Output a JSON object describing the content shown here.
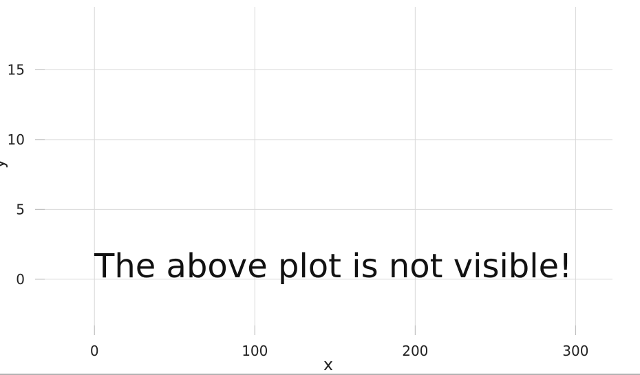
{
  "chart_data": {
    "type": "scatter",
    "title": "",
    "xlabel": "x",
    "ylabel": "y",
    "xlim": [
      -37,
      323
    ],
    "ylim": [
      -4,
      19.5
    ],
    "x_ticks": [
      0,
      100,
      200,
      300
    ],
    "y_ticks": [
      0,
      5,
      10,
      15
    ],
    "x_tick_labels": [
      "0",
      "100",
      "200",
      "300"
    ],
    "y_tick_labels": [
      "0",
      "5",
      "10",
      "15"
    ],
    "series": [],
    "grid": true,
    "annotation": "The above plot is not visible!"
  }
}
